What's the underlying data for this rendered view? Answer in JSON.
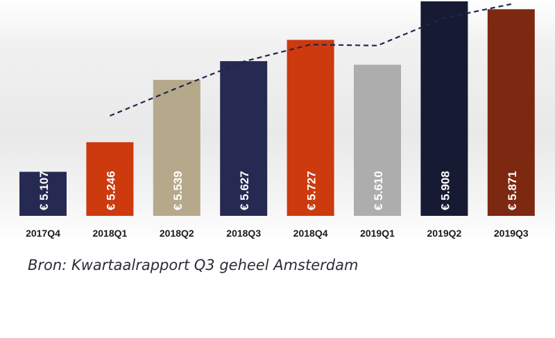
{
  "chart_data": {
    "type": "bar",
    "categories": [
      "2017Q4",
      "2018Q1",
      "2018Q2",
      "2018Q3",
      "2018Q4",
      "2019Q1",
      "2019Q2",
      "2019Q3"
    ],
    "values": [
      5107,
      5246,
      5539,
      5627,
      5727,
      5610,
      5908,
      5871
    ],
    "value_labels": [
      "€ 5.107",
      "€ 5.246",
      "€ 5.539",
      "€ 5.627",
      "€ 5.727",
      "€ 5.610",
      "€ 5.908",
      "€ 5.871"
    ],
    "bar_colors": [
      "#262a52",
      "#cc3a0e",
      "#b6a88a",
      "#262a52",
      "#cc3a0e",
      "#adadad",
      "#171a33",
      "#7d2810"
    ],
    "trend_line": {
      "style": "dashed",
      "color": "#1f2550",
      "categories": [
        "2018Q1",
        "2018Q2",
        "2018Q3",
        "2018Q4",
        "2019Q1",
        "2019Q2",
        "2019Q3"
      ],
      "values": [
        5370,
        5500,
        5625,
        5705,
        5700,
        5830,
        5895
      ]
    },
    "ylim": [
      4900,
      6000
    ],
    "grid": false,
    "legend": "none"
  },
  "source_text": "Bron: Kwartaalrapport Q3 geheel Amsterdam"
}
